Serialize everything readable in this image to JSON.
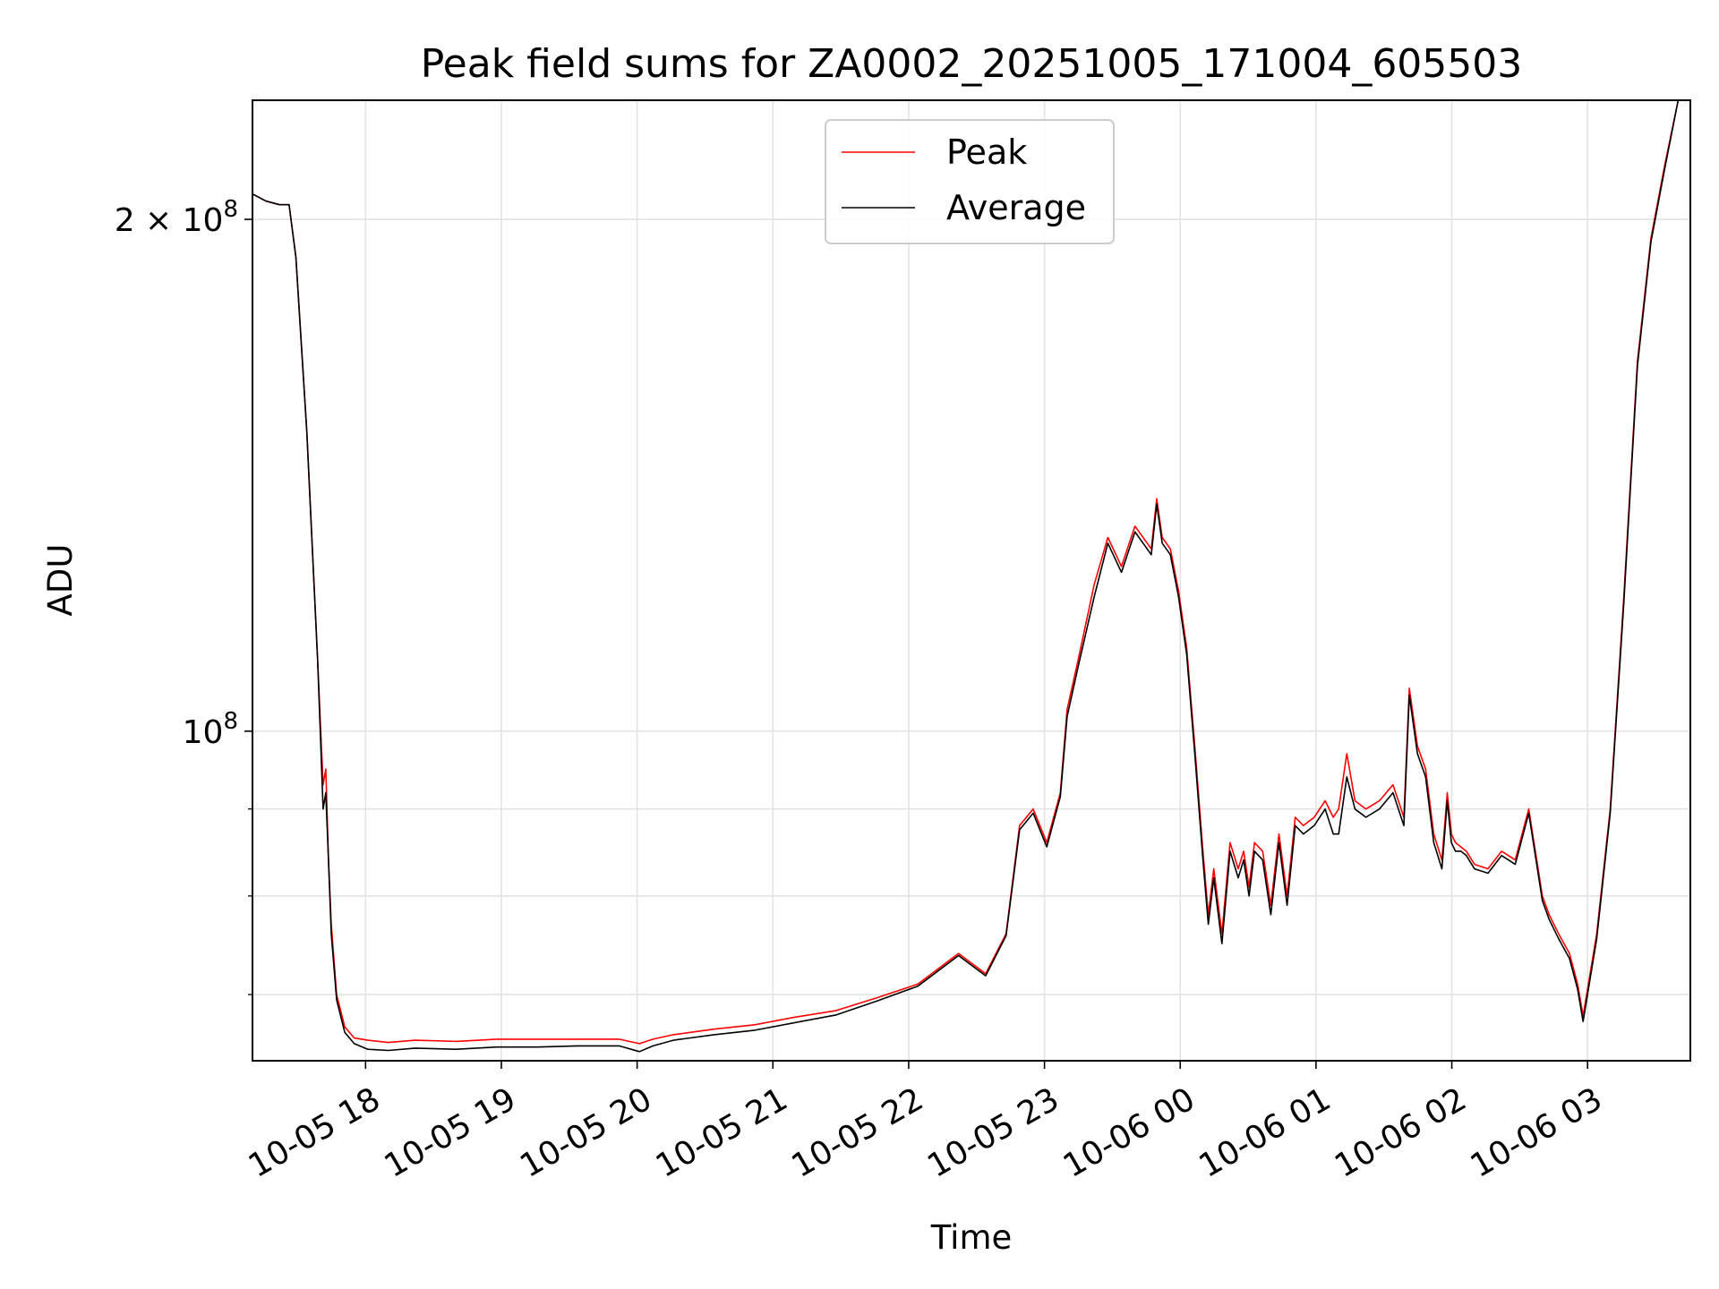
{
  "chart_data": {
    "type": "line",
    "title": "Peak field sums for ZA0002_20251005_171004_605503",
    "xlabel": "Time",
    "ylabel": "ADU",
    "yscale": "log",
    "grid": true,
    "legend_position": "top-center",
    "x_unit": "hours since 2025-10-05 17:10",
    "xlim": [
      0,
      10.59
    ],
    "ylim": [
      64000000,
      235000000
    ],
    "x_ticks": [
      {
        "value": 0.833,
        "label": "10-05 18"
      },
      {
        "value": 1.833,
        "label": "10-05 19"
      },
      {
        "value": 2.833,
        "label": "10-05 20"
      },
      {
        "value": 3.833,
        "label": "10-05 21"
      },
      {
        "value": 4.833,
        "label": "10-05 22"
      },
      {
        "value": 5.833,
        "label": "10-05 23"
      },
      {
        "value": 6.833,
        "label": "10-06 00"
      },
      {
        "value": 7.833,
        "label": "10-06 01"
      },
      {
        "value": 8.833,
        "label": "10-06 02"
      },
      {
        "value": 9.833,
        "label": "10-06 03"
      }
    ],
    "y_ticks": [
      {
        "value": 100000000,
        "base": "10",
        "exp": "8",
        "prefix": ""
      },
      {
        "value": 200000000,
        "base": "10",
        "exp": "8",
        "prefix": "2 × "
      }
    ],
    "y_minor_ticks": [
      70000000,
      80000000,
      90000000
    ],
    "series": [
      {
        "name": "Peak",
        "color": "#ff0000",
        "x": [
          0,
          0.1,
          0.2,
          0.27,
          0.32,
          0.4,
          0.48,
          0.52,
          0.54,
          0.56,
          0.58,
          0.62,
          0.68,
          0.75,
          0.85,
          1.0,
          1.2,
          1.5,
          1.8,
          2.1,
          2.4,
          2.7,
          2.85,
          2.95,
          3.1,
          3.4,
          3.7,
          4.0,
          4.3,
          4.6,
          4.9,
          5.2,
          5.4,
          5.55,
          5.65,
          5.75,
          5.85,
          5.95,
          6.0,
          6.08,
          6.2,
          6.3,
          6.4,
          6.5,
          6.62,
          6.66,
          6.7,
          6.76,
          6.82,
          6.88,
          6.94,
          7.0,
          7.04,
          7.08,
          7.14,
          7.2,
          7.26,
          7.3,
          7.34,
          7.38,
          7.44,
          7.5,
          7.56,
          7.62,
          7.68,
          7.74,
          7.82,
          7.9,
          7.96,
          8.0,
          8.06,
          8.12,
          8.2,
          8.3,
          8.4,
          8.48,
          8.52,
          8.58,
          8.64,
          8.7,
          8.76,
          8.8,
          8.83,
          8.86,
          8.9,
          8.94,
          9.0,
          9.1,
          9.2,
          9.3,
          9.4,
          9.5,
          9.55,
          9.62,
          9.7,
          9.76,
          9.8,
          9.9,
          10.0,
          10.1,
          10.2,
          10.3,
          10.4,
          10.5,
          10.59
        ],
        "values": [
          207000000,
          205000000,
          204000000,
          204000000,
          190000000,
          150000000,
          110000000,
          93000000,
          95000000,
          84000000,
          77000000,
          70000000,
          67000000,
          66000000,
          65800000,
          65600000,
          65800000,
          65700000,
          65900000,
          65900000,
          65900000,
          65900000,
          65500000,
          65900000,
          66300000,
          66800000,
          67200000,
          67900000,
          68500000,
          69700000,
          71000000,
          74000000,
          72000000,
          76000000,
          88000000,
          90000000,
          86000000,
          92000000,
          103000000,
          110000000,
          122000000,
          130000000,
          125000000,
          132000000,
          128000000,
          137000000,
          130000000,
          128000000,
          121000000,
          112000000,
          98000000,
          85000000,
          78000000,
          83000000,
          76000000,
          86000000,
          83000000,
          85000000,
          81000000,
          86000000,
          85000000,
          79000000,
          87000000,
          80000000,
          89000000,
          88000000,
          89000000,
          91000000,
          89000000,
          90000000,
          97000000,
          91000000,
          90000000,
          91000000,
          93000000,
          89000000,
          106000000,
          98000000,
          95000000,
          87000000,
          84000000,
          92000000,
          87000000,
          86000000,
          85500000,
          85000000,
          83500000,
          83000000,
          85000000,
          84000000,
          90000000,
          80000000,
          78000000,
          76000000,
          74000000,
          71000000,
          68000000,
          76000000,
          90000000,
          120000000,
          165000000,
          195000000,
          215000000,
          235000000,
          235000000
        ]
      },
      {
        "name": "Average",
        "color": "#000000",
        "x": [
          0,
          0.1,
          0.2,
          0.27,
          0.32,
          0.4,
          0.48,
          0.52,
          0.54,
          0.56,
          0.58,
          0.62,
          0.68,
          0.75,
          0.85,
          1.0,
          1.2,
          1.5,
          1.8,
          2.1,
          2.4,
          2.7,
          2.85,
          2.95,
          3.1,
          3.4,
          3.7,
          4.0,
          4.3,
          4.6,
          4.9,
          5.2,
          5.4,
          5.55,
          5.65,
          5.75,
          5.85,
          5.95,
          6.0,
          6.08,
          6.2,
          6.3,
          6.4,
          6.5,
          6.62,
          6.66,
          6.7,
          6.76,
          6.82,
          6.88,
          6.94,
          7.0,
          7.04,
          7.08,
          7.14,
          7.2,
          7.26,
          7.3,
          7.34,
          7.38,
          7.44,
          7.5,
          7.56,
          7.62,
          7.68,
          7.74,
          7.82,
          7.9,
          7.96,
          8.0,
          8.06,
          8.12,
          8.2,
          8.3,
          8.4,
          8.48,
          8.52,
          8.58,
          8.64,
          8.7,
          8.76,
          8.8,
          8.83,
          8.86,
          8.9,
          8.94,
          9.0,
          9.1,
          9.2,
          9.3,
          9.4,
          9.5,
          9.55,
          9.62,
          9.7,
          9.76,
          9.8,
          9.9,
          10.0,
          10.1,
          10.2,
          10.3,
          10.4,
          10.5,
          10.59
        ],
        "values": [
          207000000,
          205000000,
          204000000,
          204000000,
          190000000,
          150000000,
          110000000,
          90000000,
          92000000,
          84000000,
          76000000,
          69500000,
          66500000,
          65500000,
          65000000,
          64900000,
          65100000,
          65000000,
          65200000,
          65200000,
          65300000,
          65300000,
          64800000,
          65300000,
          65800000,
          66300000,
          66700000,
          67400000,
          68100000,
          69400000,
          70800000,
          73800000,
          71800000,
          75800000,
          87500000,
          89500000,
          85500000,
          91500000,
          102000000,
          109000000,
          120000000,
          129000000,
          124000000,
          131000000,
          127000000,
          136000000,
          129000000,
          127000000,
          120000000,
          111000000,
          97000000,
          84000000,
          77000000,
          82000000,
          75000000,
          85000000,
          82000000,
          84000000,
          80000000,
          85000000,
          84000000,
          78000000,
          86000000,
          79000000,
          88000000,
          87000000,
          88000000,
          90000000,
          87000000,
          87000000,
          94000000,
          90000000,
          89000000,
          90000000,
          92000000,
          88000000,
          105000000,
          97000000,
          94000000,
          86000000,
          83000000,
          91000000,
          86000000,
          85000000,
          85000000,
          84500000,
          83000000,
          82500000,
          84500000,
          83500000,
          89500000,
          79500000,
          77500000,
          75500000,
          73500000,
          70500000,
          67500000,
          75500000,
          89500000,
          119000000,
          164000000,
          194000000,
          214000000,
          235000000,
          235000000
        ]
      }
    ]
  }
}
